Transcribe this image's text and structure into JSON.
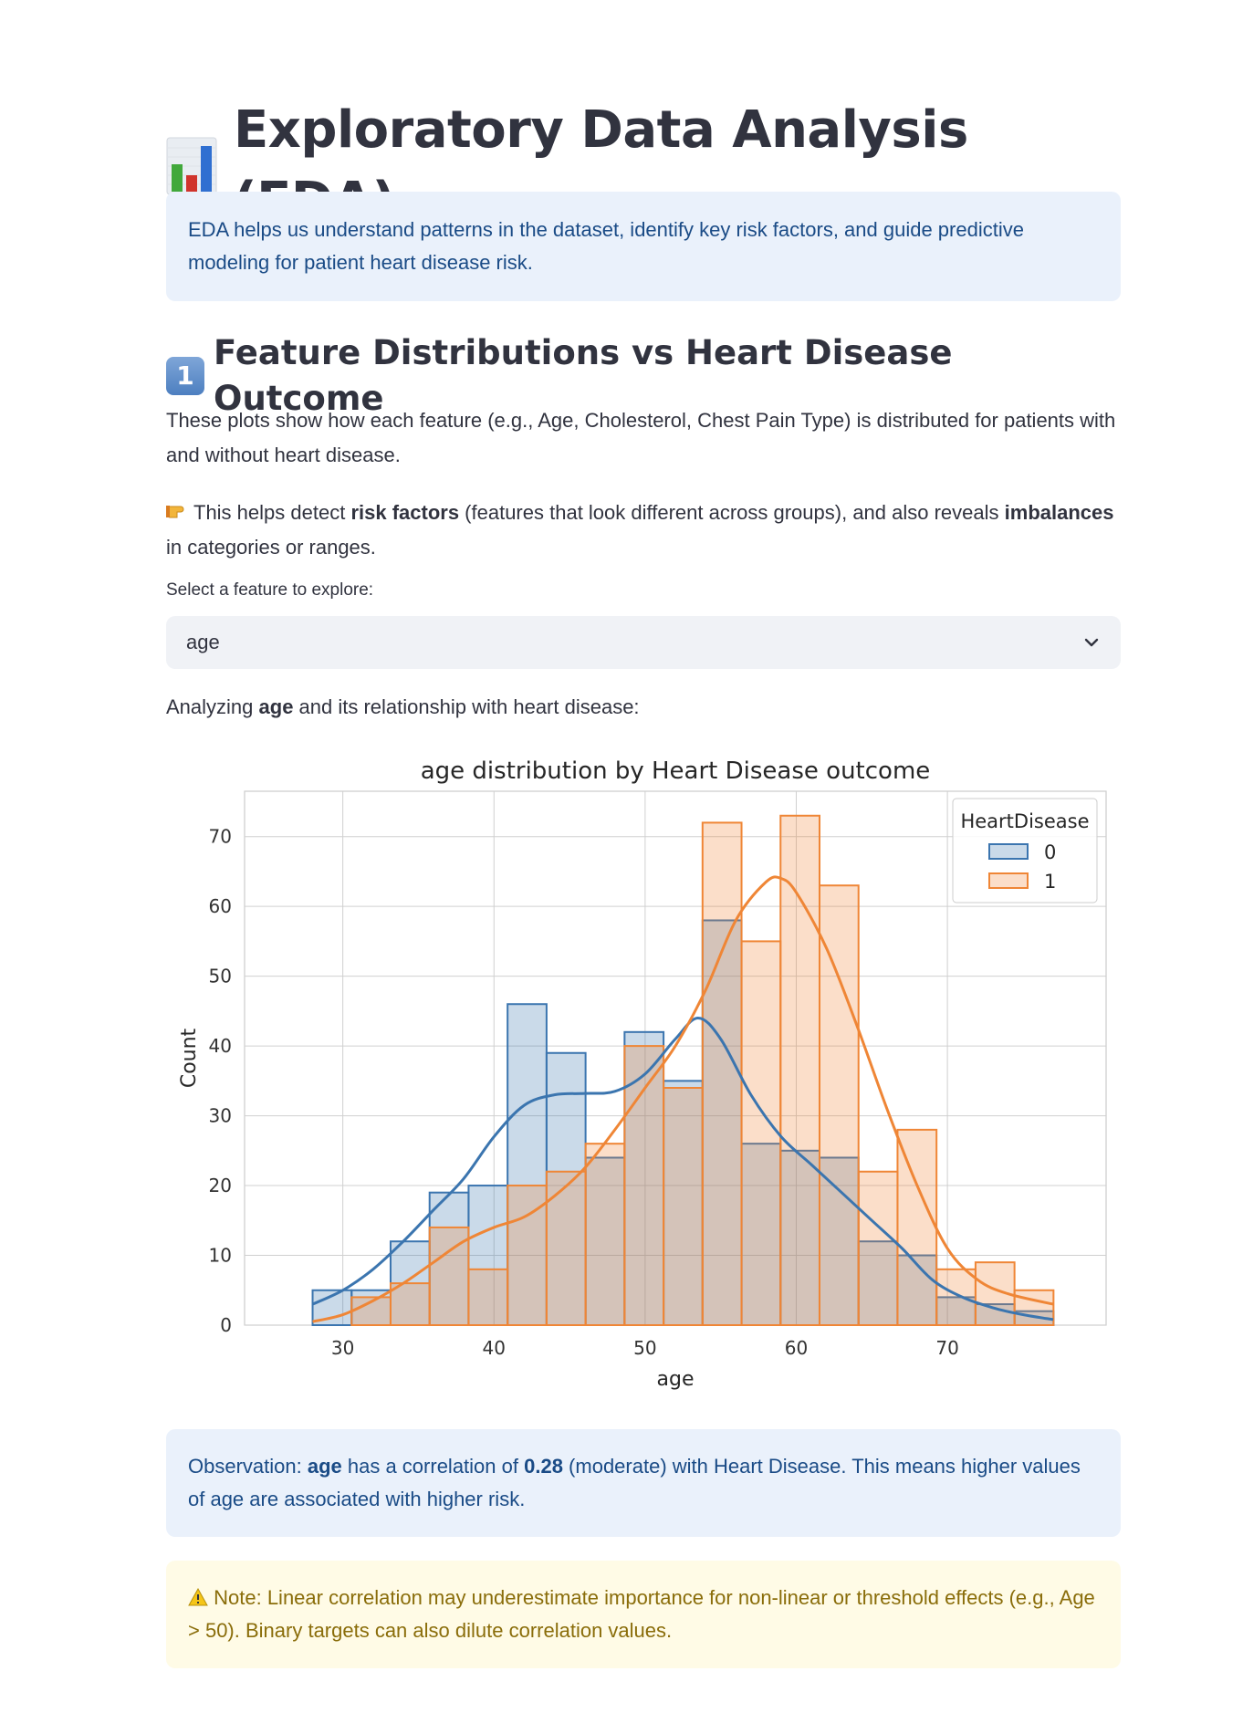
{
  "page": {
    "title": "Exploratory Data Analysis (EDA)",
    "title_icon": "bar-chart-emoji-icon",
    "intro": "EDA helps us understand patterns in the dataset, identify key risk factors, and guide predictive modeling for patient heart disease risk."
  },
  "section1": {
    "number": "1",
    "heading": "Feature Distributions vs Heart Disease Outcome",
    "para1": "These plots show how each feature (e.g., Age, Cholesterol, Chest Pain Type) is distributed for patients with and without heart disease.",
    "para2_pre": "This helps detect ",
    "para2_bold1": "risk factors",
    "para2_mid": " (features that look different across groups), and also reveals ",
    "para2_bold2": "imbalances",
    "para2_post": " in categories or ranges.",
    "hand_icon": "pointing-hand-icon"
  },
  "select": {
    "label": "Select a feature to explore:",
    "value": "age"
  },
  "analyzing": {
    "pre": "Analyzing ",
    "feature": "age",
    "post": " and its relationship with heart disease:"
  },
  "observation": {
    "pre": "Observation: ",
    "feature": "age",
    "mid1": " has a correlation of ",
    "corr": "0.28",
    "mid2": " (moderate) with Heart Disease. This means higher values of age are associated with higher risk."
  },
  "note": {
    "icon": "warning-icon",
    "text": "Note: Linear correlation may underestimate importance for non-linear or threshold effects (e.g., Age > 50). Binary targets can also dilute correlation values."
  },
  "colors": {
    "series0": "#3b75af",
    "series1": "#ef8636"
  },
  "chart_data": {
    "type": "histogram",
    "title": "age distribution by Heart Disease outcome",
    "xlabel": "age",
    "ylabel": "Count",
    "xlim": [
      23.5,
      80.5
    ],
    "ylim": [
      0,
      76.5
    ],
    "xticks": [
      30,
      40,
      50,
      60,
      70
    ],
    "yticks": [
      0,
      10,
      20,
      30,
      40,
      50,
      60,
      70
    ],
    "grid": true,
    "legend": {
      "title": "HeartDisease",
      "position": "top-right",
      "entries": [
        "0",
        "1"
      ]
    },
    "bin_width": 2.58,
    "series": [
      {
        "name": "0",
        "bin_start": 28,
        "counts": [
          5,
          5,
          12,
          19,
          20,
          46,
          39,
          24,
          42,
          35,
          58,
          26,
          25,
          24,
          12,
          10,
          4,
          3,
          2
        ],
        "kde": [
          [
            28,
            3
          ],
          [
            30,
            5
          ],
          [
            32,
            8
          ],
          [
            34,
            12
          ],
          [
            36,
            16.5
          ],
          [
            38,
            21
          ],
          [
            40,
            27
          ],
          [
            42,
            31.5
          ],
          [
            44,
            33
          ],
          [
            46,
            33.2
          ],
          [
            48,
            33.5
          ],
          [
            50,
            36
          ],
          [
            52,
            41
          ],
          [
            53.5,
            44
          ],
          [
            55,
            41
          ],
          [
            57,
            33
          ],
          [
            59,
            27
          ],
          [
            61,
            23
          ],
          [
            63,
            19
          ],
          [
            65,
            15
          ],
          [
            67,
            11
          ],
          [
            69,
            6.5
          ],
          [
            71,
            4
          ],
          [
            73,
            2.5
          ],
          [
            75,
            1.5
          ],
          [
            77,
            0.8
          ]
        ]
      },
      {
        "name": "1",
        "bin_start": 28,
        "counts": [
          0,
          4,
          6,
          14,
          8,
          20,
          22,
          26,
          40,
          34,
          72,
          55,
          73,
          63,
          22,
          28,
          8,
          9,
          5
        ],
        "kde": [
          [
            28,
            0.5
          ],
          [
            30,
            1.5
          ],
          [
            32,
            3.5
          ],
          [
            34,
            6
          ],
          [
            36,
            9
          ],
          [
            38,
            12
          ],
          [
            40,
            14
          ],
          [
            42,
            15.5
          ],
          [
            44,
            18.5
          ],
          [
            46,
            22.5
          ],
          [
            48,
            28
          ],
          [
            50,
            34
          ],
          [
            52,
            40
          ],
          [
            54,
            48
          ],
          [
            56,
            58
          ],
          [
            58,
            63.5
          ],
          [
            59,
            64
          ],
          [
            60,
            62
          ],
          [
            62,
            54
          ],
          [
            64,
            43
          ],
          [
            66,
            31
          ],
          [
            68,
            20
          ],
          [
            70,
            11
          ],
          [
            72,
            6.5
          ],
          [
            74,
            4.5
          ],
          [
            77,
            3
          ]
        ]
      }
    ]
  }
}
